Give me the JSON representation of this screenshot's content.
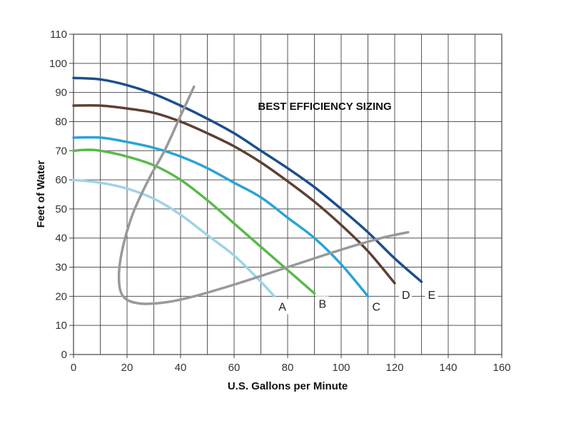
{
  "chart_data": {
    "type": "line",
    "xlabel": "U.S. Gallons per Minute",
    "ylabel": "Feet of Water",
    "annotation": "BEST EFFICIENCY SIZING",
    "xlim": [
      0,
      160
    ],
    "ylim": [
      0,
      110
    ],
    "x_ticks": [
      0,
      20,
      40,
      60,
      80,
      100,
      120,
      140,
      160
    ],
    "y_ticks": [
      0,
      10,
      20,
      30,
      40,
      50,
      60,
      70,
      80,
      90,
      100,
      110
    ],
    "grid": true,
    "series": [
      {
        "name": "A",
        "color": "#9fd3e6",
        "points": [
          [
            0,
            60
          ],
          [
            10,
            59
          ],
          [
            20,
            57
          ],
          [
            30,
            53.5
          ],
          [
            40,
            48
          ],
          [
            50,
            41
          ],
          [
            60,
            34
          ],
          [
            70,
            25
          ],
          [
            75,
            20
          ]
        ]
      },
      {
        "name": "B",
        "color": "#5bb84d",
        "points": [
          [
            0,
            70
          ],
          [
            5,
            70.3
          ],
          [
            10,
            70
          ],
          [
            20,
            68
          ],
          [
            30,
            65
          ],
          [
            40,
            60
          ],
          [
            50,
            53
          ],
          [
            60,
            45
          ],
          [
            70,
            37
          ],
          [
            80,
            29
          ],
          [
            90,
            21
          ]
        ]
      },
      {
        "name": "C",
        "color": "#2ba3d6",
        "points": [
          [
            0,
            74.5
          ],
          [
            10,
            74.5
          ],
          [
            20,
            73
          ],
          [
            30,
            71
          ],
          [
            40,
            68
          ],
          [
            50,
            64
          ],
          [
            60,
            59
          ],
          [
            70,
            54
          ],
          [
            80,
            47
          ],
          [
            90,
            40
          ],
          [
            100,
            31
          ],
          [
            110,
            20
          ]
        ]
      },
      {
        "name": "D",
        "color": "#5c4033",
        "points": [
          [
            0,
            85.5
          ],
          [
            10,
            85.5
          ],
          [
            20,
            84.5
          ],
          [
            30,
            83
          ],
          [
            40,
            80
          ],
          [
            50,
            76
          ],
          [
            60,
            71.5
          ],
          [
            70,
            66
          ],
          [
            80,
            59.5
          ],
          [
            90,
            52.5
          ],
          [
            100,
            44.5
          ],
          [
            110,
            35.5
          ],
          [
            120,
            24.5
          ]
        ]
      },
      {
        "name": "E",
        "color": "#1c4e8c",
        "points": [
          [
            0,
            95
          ],
          [
            10,
            94.5
          ],
          [
            20,
            92.5
          ],
          [
            30,
            89.5
          ],
          [
            40,
            85.5
          ],
          [
            50,
            81
          ],
          [
            60,
            76
          ],
          [
            70,
            70
          ],
          [
            80,
            64
          ],
          [
            90,
            57.5
          ],
          [
            100,
            50
          ],
          [
            110,
            42
          ],
          [
            120,
            33
          ],
          [
            130,
            25
          ]
        ]
      }
    ],
    "efficiency_envelope": {
      "color": "#999999",
      "points": [
        [
          45,
          92
        ],
        [
          40,
          82
        ],
        [
          34,
          70
        ],
        [
          28,
          60
        ],
        [
          22,
          48
        ],
        [
          18,
          35
        ],
        [
          17,
          25
        ],
        [
          19,
          19.5
        ],
        [
          25,
          17.5
        ],
        [
          35,
          18
        ],
        [
          45,
          20
        ],
        [
          60,
          24
        ],
        [
          80,
          30
        ],
        [
          100,
          36
        ],
        [
          115,
          40
        ],
        [
          125,
          42
        ]
      ]
    }
  }
}
